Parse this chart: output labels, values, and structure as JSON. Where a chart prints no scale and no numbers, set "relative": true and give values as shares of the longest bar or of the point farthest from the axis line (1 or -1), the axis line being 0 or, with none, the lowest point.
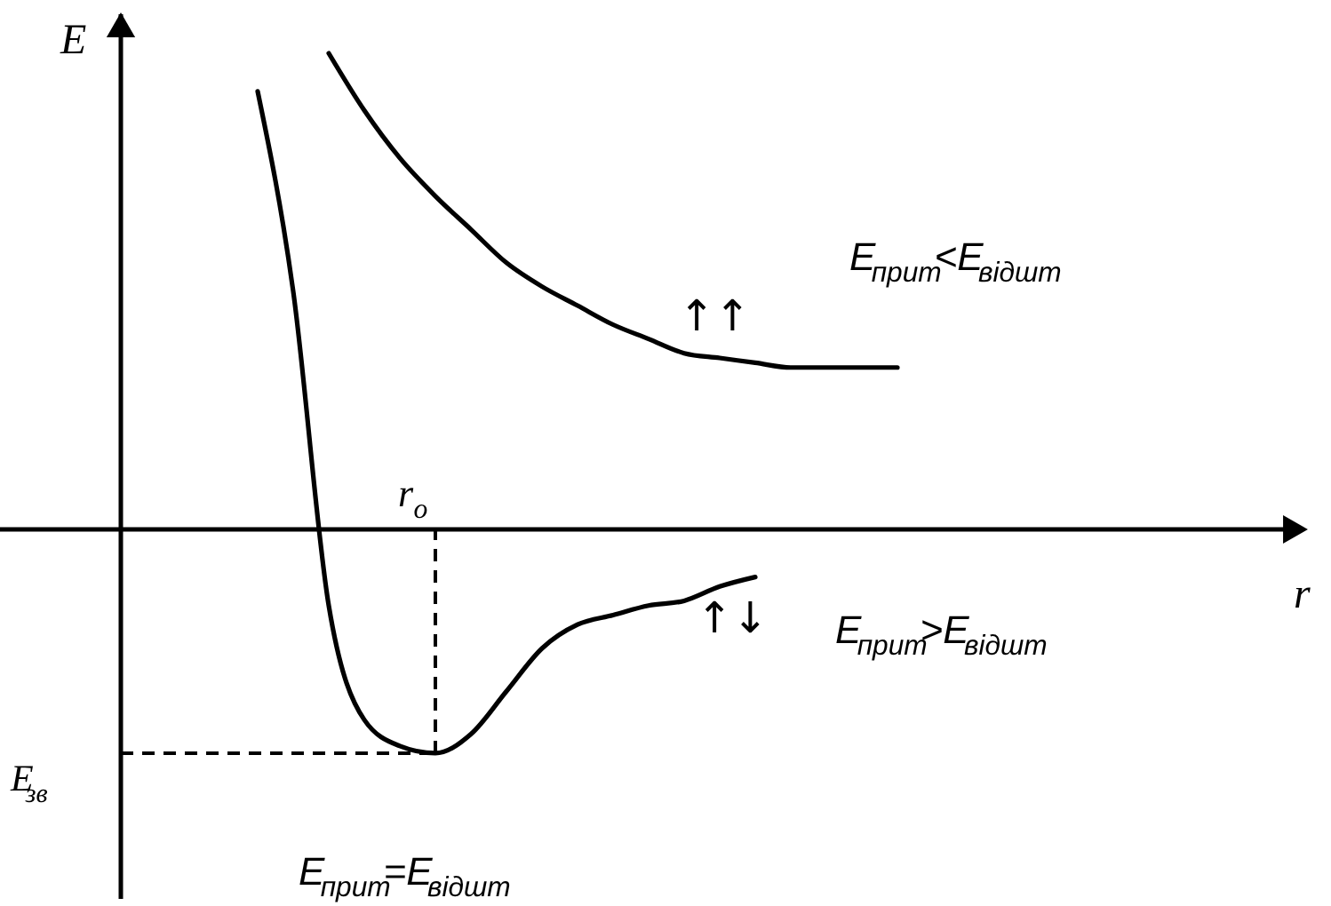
{
  "chart_data": {
    "type": "line",
    "relative": true,
    "ylabel": "E",
    "grid": false,
    "marker": "none",
    "line_style": "solid",
    "categories": [
      null,
      null,
      null,
      null,
      null,
      null,
      null,
      null,
      null,
      null,
      null,
      null,
      null,
      null,
      null,
      null,
      null,
      null,
      null,
      null
    ],
    "series": [
      {
        "color": "#000000",
        "values": [
          null,
          null,
          1.0,
          0.88,
          0.78,
          0.7,
          0.63,
          0.56,
          0.51,
          0.47,
          0.43,
          0.4,
          0.37,
          0.36,
          0.35,
          0.34,
          0.34,
          0.34,
          0.34,
          null
        ]
      },
      {
        "color": "#000000",
        "values": [
          0.92,
          0.5,
          -0.16,
          -0.4,
          -0.455,
          -0.47,
          -0.43,
          -0.34,
          -0.25,
          -0.2,
          -0.18,
          -0.16,
          -0.15,
          -0.12,
          -0.1,
          null,
          null,
          null,
          null,
          null
        ]
      }
    ],
    "ref_lines": [
      {
        "axis": "y",
        "value": -0.47,
        "label": "E$_{зв}$",
        "line_style": "dashed"
      }
    ],
    "annotations": [
      "E$_{прит}$<E$_{відшт}$",
      "↑↑",
      "E$_{прит}$>E$_{відшт}$",
      "↑↓",
      "E$_{прит}$=E$_{відшт}$",
      "r$_{o}$",
      "r"
    ]
  }
}
